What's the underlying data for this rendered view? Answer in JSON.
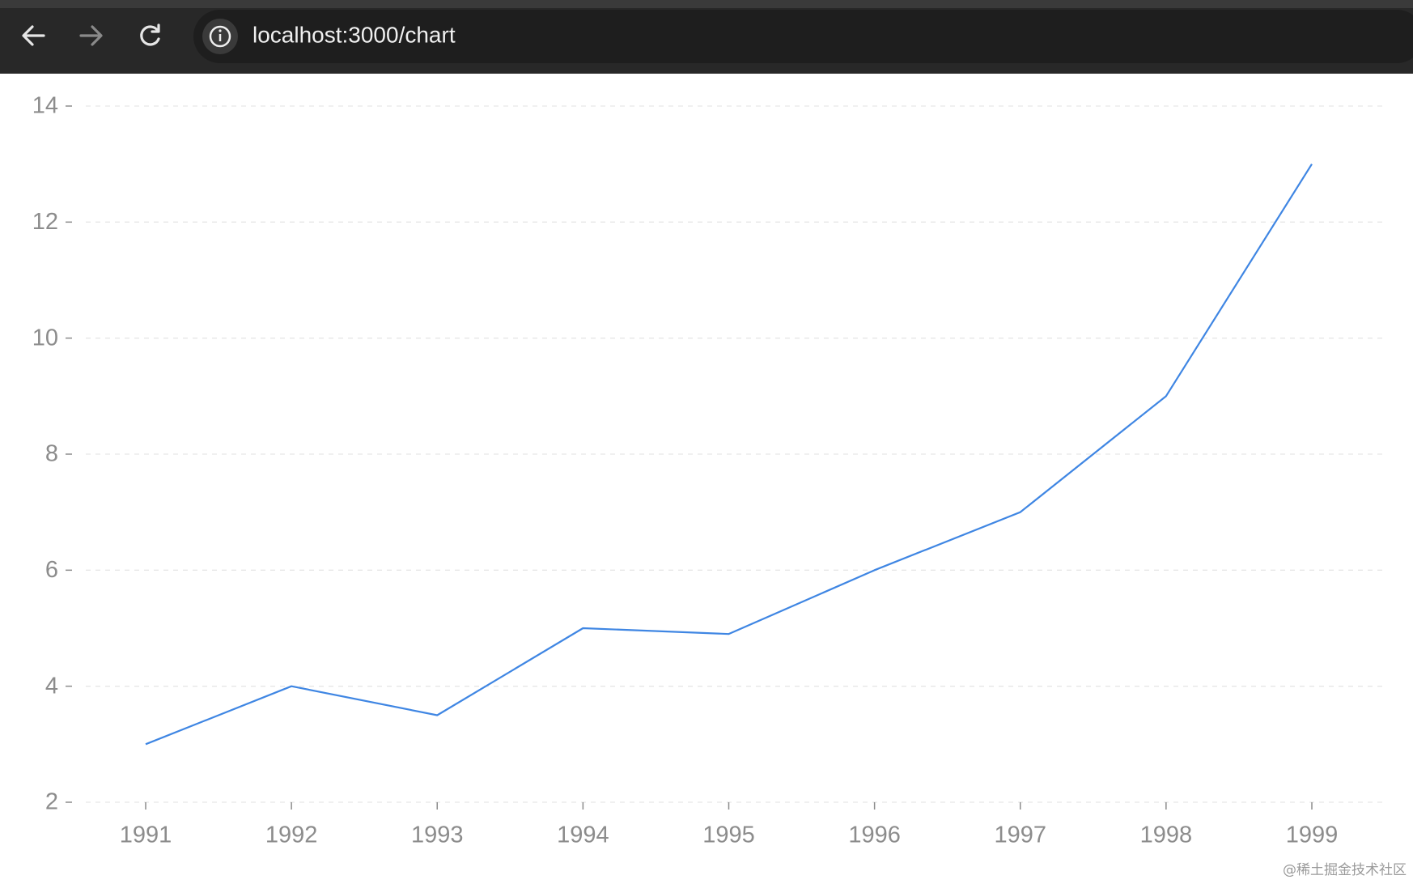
{
  "browser": {
    "url": "localhost:3000/chart"
  },
  "chart_data": {
    "type": "line",
    "categories": [
      "1991",
      "1992",
      "1993",
      "1994",
      "1995",
      "1996",
      "1997",
      "1998",
      "1999"
    ],
    "values": [
      3,
      4,
      3.5,
      5,
      4.9,
      6,
      7,
      9,
      13
    ],
    "color": "#3f86e3",
    "ylim": [
      2,
      14
    ],
    "yticks": [
      2,
      4,
      6,
      8,
      10,
      12,
      14
    ],
    "grid": true
  },
  "watermark": "@稀土掘金技术社区"
}
